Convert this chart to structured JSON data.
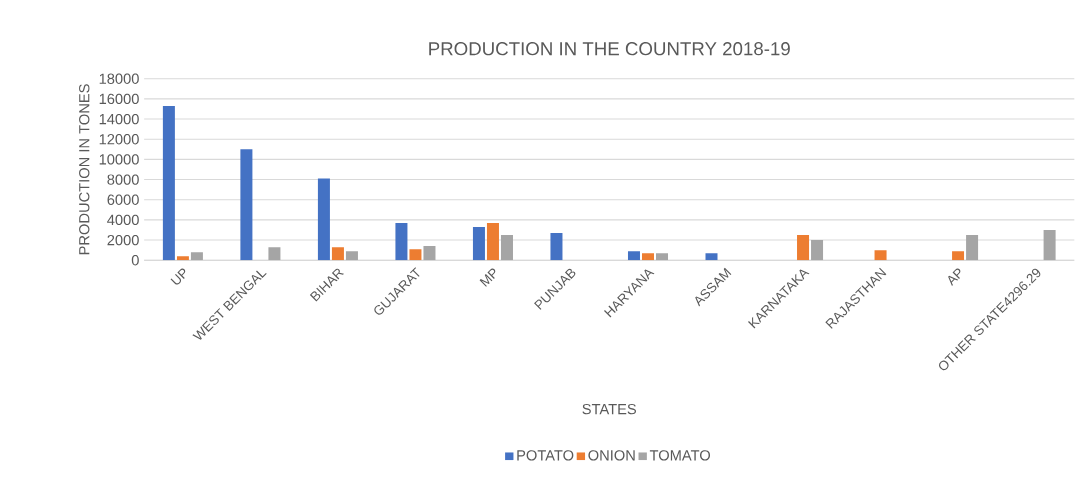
{
  "chart_data": {
    "type": "bar",
    "title": "PRODUCTION IN THE COUNTRY 2018-19",
    "xlabel": "STATES",
    "ylabel": "PRODUCTION IN TONES",
    "categories": [
      "UP",
      "WEST BENGAL",
      "BIHAR",
      "GUJARAT",
      "MP",
      "PUNJAB",
      "HARYANA",
      "ASSAM",
      "KARNATAKA",
      "RAJASTHAN",
      "AP",
      "OTHER STATE4296.29"
    ],
    "series": [
      {
        "name": "POTATO",
        "color": "#4472c4",
        "values": [
          15300,
          11000,
          8100,
          3700,
          3300,
          2700,
          900,
          700,
          null,
          null,
          null,
          null
        ]
      },
      {
        "name": "ONION",
        "color": "#ed7d31",
        "values": [
          400,
          null,
          1300,
          1100,
          3700,
          null,
          700,
          null,
          2500,
          1000,
          900,
          null
        ]
      },
      {
        "name": "TOMATO",
        "color": "#a5a5a5",
        "values": [
          800,
          1300,
          900,
          1400,
          2500,
          null,
          700,
          null,
          2000,
          null,
          2500,
          3000
        ]
      }
    ],
    "ylim": [
      0,
      18000
    ],
    "yticks": [
      0,
      2000,
      4000,
      6000,
      8000,
      10000,
      12000,
      14000,
      16000,
      18000
    ],
    "grid": "y",
    "legend": "bottom"
  }
}
